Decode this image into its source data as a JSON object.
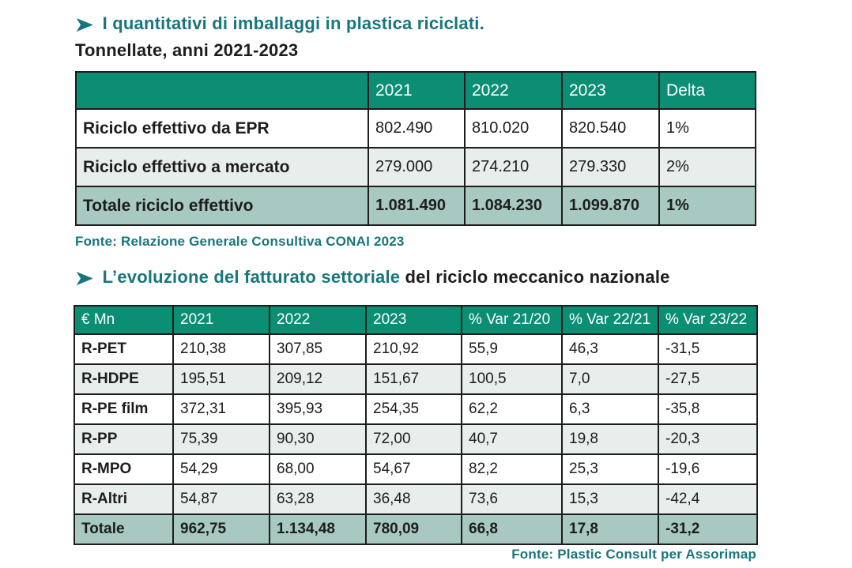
{
  "colors": {
    "accent_teal": "#17767c",
    "table_header_green": "#0b8e73",
    "row_alt_bg": "#e8eeec",
    "total_row_bg": "#a7c9c1",
    "border": "#1d1d1b"
  },
  "section1": {
    "arrow_icon": "➤",
    "title": "I quantitativi di imballaggi in plastica riciclati.",
    "subtitle": "Tonnellate, anni 2021-2023",
    "source": "Fonte: Relazione Generale Consultiva CONAI 2023"
  },
  "section2": {
    "arrow_icon": "➤",
    "title_teal": "L’evoluzione del fatturato settoriale",
    "title_black": " del riciclo meccanico nazionale",
    "source": "Fonte: Plastic Consult per Assorimap"
  },
  "chart_data": [
    {
      "type": "table",
      "title": "I quantitativi di imballaggi in plastica riciclati. Tonnellate, anni 2021-2023",
      "headers": [
        "",
        "2021",
        "2022",
        "2023",
        "Delta"
      ],
      "rows": [
        {
          "label": "Riciclo effettivo da EPR",
          "values": [
            "802.490",
            "810.020",
            "820.540",
            "1%"
          ]
        },
        {
          "label": "Riciclo effettivo a mercato",
          "values": [
            "279.000",
            "274.210",
            "279.330",
            "2%"
          ]
        },
        {
          "label": "Totale riciclo effettivo",
          "values": [
            "1.081.490",
            "1.084.230",
            "1.099.870",
            "1%"
          ]
        }
      ]
    },
    {
      "type": "table",
      "title": "L’evoluzione del fatturato settoriale del riciclo meccanico nazionale",
      "headers": [
        "€ Mn",
        "2021",
        "2022",
        "2023",
        "% Var 21/20",
        "% Var 22/21",
        "% Var 23/22"
      ],
      "rows": [
        {
          "label": "R-PET",
          "values": [
            "210,38",
            "307,85",
            "210,92",
            "55,9",
            "46,3",
            "-31,5"
          ]
        },
        {
          "label": "R-HDPE",
          "values": [
            "195,51",
            "209,12",
            "151,67",
            "100,5",
            "7,0",
            "-27,5"
          ]
        },
        {
          "label": "R-PE film",
          "values": [
            "372,31",
            "395,93",
            "254,35",
            "62,2",
            "6,3",
            "-35,8"
          ]
        },
        {
          "label": "R-PP",
          "values": [
            "75,39",
            "90,30",
            "72,00",
            "40,7",
            "19,8",
            "-20,3"
          ]
        },
        {
          "label": "R-MPO",
          "values": [
            "54,29",
            "68,00",
            "54,67",
            "82,2",
            "25,3",
            "-19,6"
          ]
        },
        {
          "label": "R-Altri",
          "values": [
            "54,87",
            "63,28",
            "36,48",
            "73,6",
            "15,3",
            "-42,4"
          ]
        },
        {
          "label": "Totale",
          "values": [
            "962,75",
            "1.134,48",
            "780,09",
            "66,8",
            "17,8",
            "-31,2"
          ]
        }
      ]
    }
  ]
}
